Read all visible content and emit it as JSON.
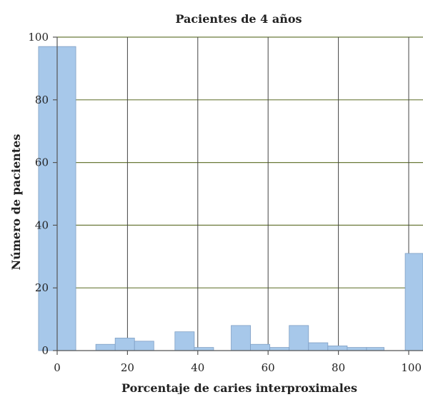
{
  "chart_data": {
    "type": "bar",
    "title": "Pacientes de 4 años",
    "xlabel": "Porcentaje de caries interproximales",
    "ylabel": "Número de pacientes",
    "xlim": [
      0,
      100
    ],
    "ylim": [
      0,
      100
    ],
    "x_ticks": [
      0,
      20,
      40,
      60,
      80,
      100
    ],
    "y_ticks": [
      0,
      20,
      40,
      60,
      80,
      100
    ],
    "grid": true,
    "colors": {
      "bar_fill": "#a7c8ea",
      "bar_stroke": "#7f9fc4",
      "grid": "#6b7a3a",
      "axis": "#555555"
    },
    "bins": [
      {
        "x0": -5.3,
        "x1": 5.3,
        "value": 97
      },
      {
        "x0": 11.0,
        "x1": 16.5,
        "value": 2
      },
      {
        "x0": 16.5,
        "x1": 22.0,
        "value": 4
      },
      {
        "x0": 22.0,
        "x1": 27.5,
        "value": 3
      },
      {
        "x0": 33.5,
        "x1": 39.0,
        "value": 6
      },
      {
        "x0": 39.0,
        "x1": 44.5,
        "value": 1
      },
      {
        "x0": 49.5,
        "x1": 55.0,
        "value": 8
      },
      {
        "x0": 55.0,
        "x1": 60.5,
        "value": 2
      },
      {
        "x0": 60.5,
        "x1": 66.0,
        "value": 1
      },
      {
        "x0": 66.0,
        "x1": 71.5,
        "value": 8
      },
      {
        "x0": 71.5,
        "x1": 77.0,
        "value": 2.5
      },
      {
        "x0": 77.0,
        "x1": 82.5,
        "value": 1.5
      },
      {
        "x0": 82.5,
        "x1": 88.0,
        "value": 1
      },
      {
        "x0": 88.0,
        "x1": 93.0,
        "value": 1
      },
      {
        "x0": 99.0,
        "x1": 105.5,
        "value": 31
      }
    ]
  }
}
